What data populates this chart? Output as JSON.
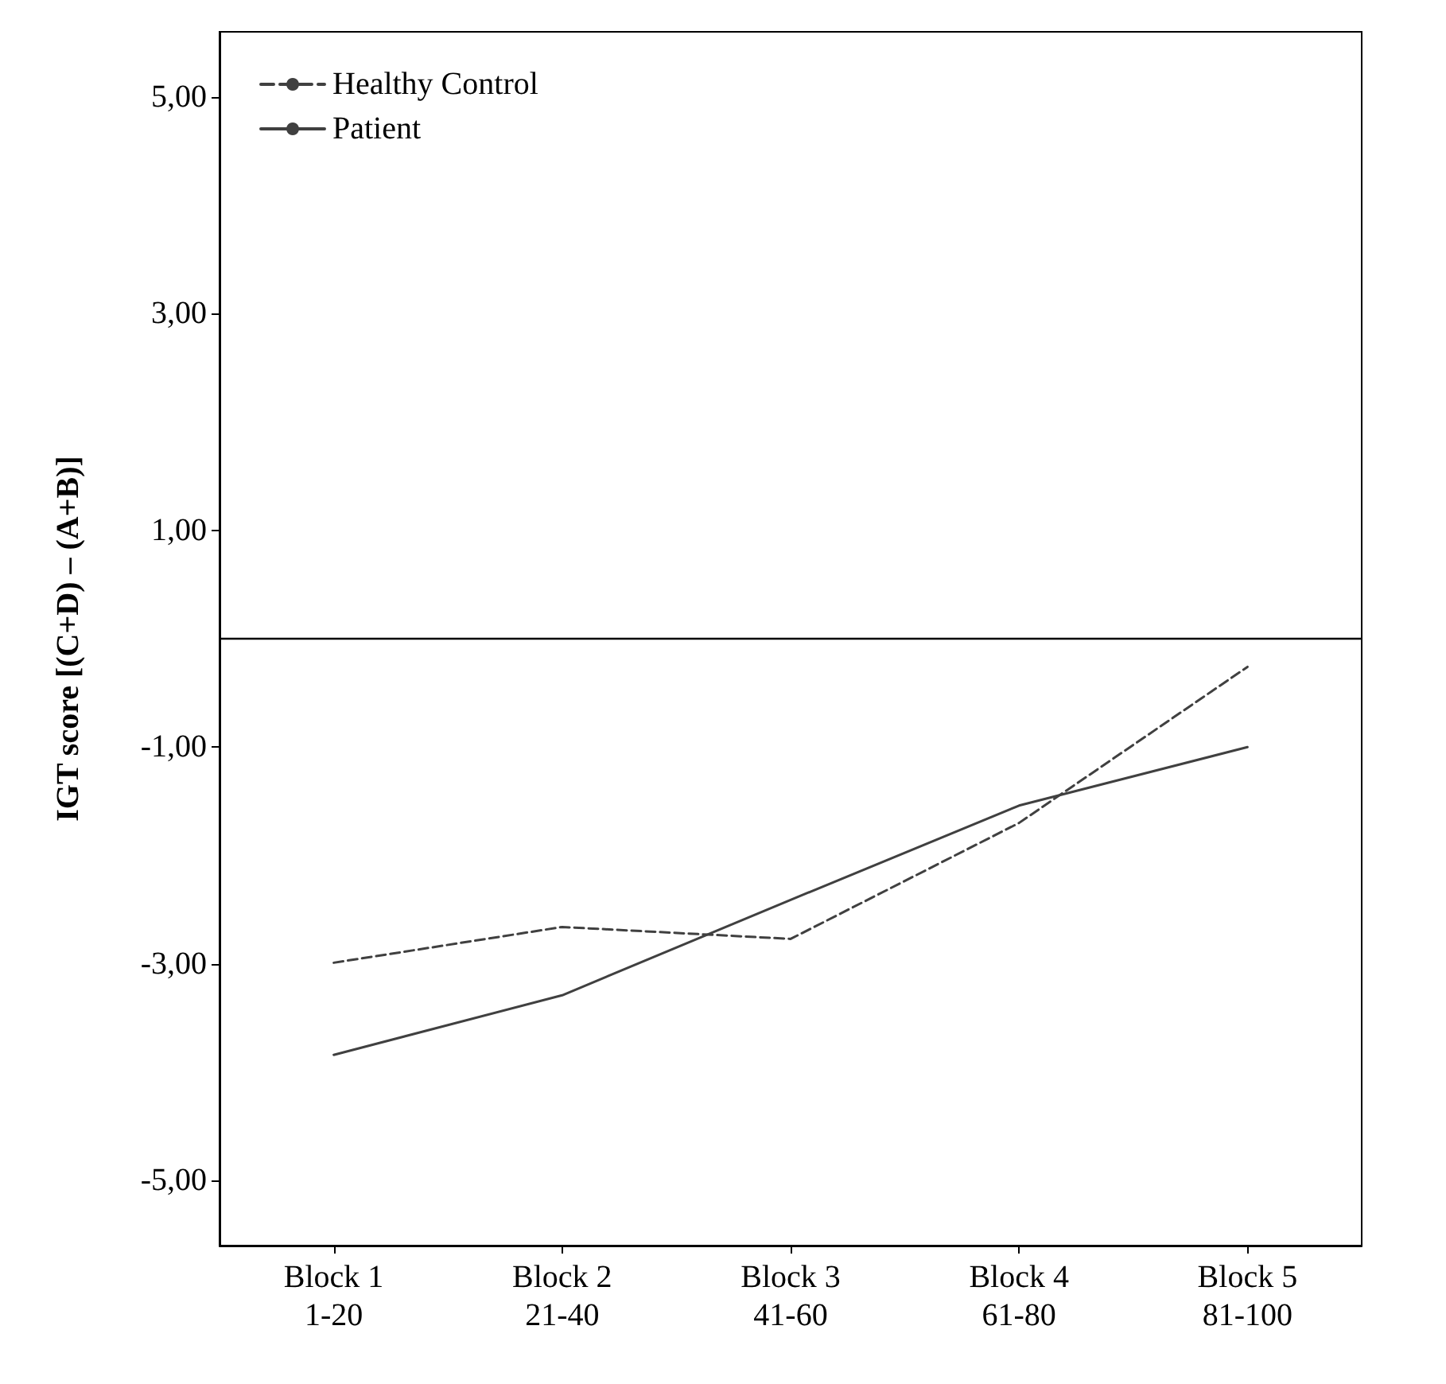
{
  "chart_data": {
    "type": "line",
    "ylabel": "IGT score [(C+D) – (A+B)]",
    "categories": [
      "Block 1\n1-20",
      "Block 2\n21-40",
      "Block 3\n41-60",
      "Block 4\n61-80",
      "Block 5\n81-100"
    ],
    "series": [
      {
        "name": "Healthy Control",
        "color": "#404040",
        "line_style": "dashed",
        "values": [
          -2.99,
          -2.66,
          -2.77,
          -1.7,
          -0.26
        ]
      },
      {
        "name": "Patient",
        "color": "#404040",
        "line_style": "solid",
        "values": [
          -3.84,
          -3.29,
          -2.41,
          -1.54,
          -1.0
        ]
      }
    ],
    "ylim": [
      -5.6,
      5.6
    ],
    "yticks": [
      {
        "value": 5,
        "label": "5,00"
      },
      {
        "value": 3,
        "label": "3,00"
      },
      {
        "value": 1,
        "label": "1,00"
      },
      {
        "value": -1,
        "label": "-1,00"
      },
      {
        "value": -3,
        "label": "-3,00"
      },
      {
        "value": -5,
        "label": "-5,00"
      }
    ],
    "ref_lines": [
      {
        "axis": "y",
        "value": 0,
        "label": null,
        "color": "#000000"
      }
    ],
    "legend": "top left",
    "grid": false,
    "marker": "none"
  }
}
